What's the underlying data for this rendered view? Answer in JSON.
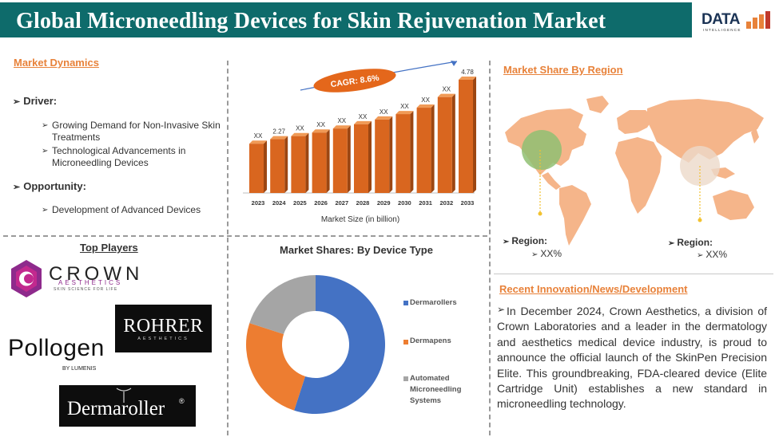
{
  "header": {
    "title": "Global Microneedling Devices for Skin Rejuvenation Market",
    "logo_text": "DATA",
    "logo_sub": "INTELLIGENCE"
  },
  "dynamics": {
    "title": "Market Dynamics",
    "driver_label": "Driver:",
    "drivers": [
      "Growing Demand for Non-Invasive Skin Treatments",
      "Technological Advancements in Microneedling Devices"
    ],
    "opportunity_label": "Opportunity:",
    "opportunities": [
      "Development of Advanced Devices"
    ]
  },
  "market_size": {
    "cagr_label": "CAGR: 8.6%",
    "xlabel": "Market Size (in billion)"
  },
  "chart_data": [
    {
      "type": "bar",
      "categories": [
        "2023",
        "2024",
        "2025",
        "2026",
        "2027",
        "2028",
        "2029",
        "2030",
        "2031",
        "2032",
        "2033"
      ],
      "values": [
        2.08,
        2.27,
        2.4,
        2.55,
        2.72,
        2.9,
        3.1,
        3.33,
        3.6,
        4.05,
        4.78
      ],
      "labels": [
        "XX",
        "2.27",
        "XX",
        "XX",
        "XX",
        "XX",
        "XX",
        "XX",
        "XX",
        "XX",
        "4.78"
      ],
      "xlabel": "Market Size (in billion)",
      "annotation": "CAGR: 8.6%",
      "colors": {
        "front": "#d9661f",
        "side": "#9c4612",
        "top": "#f09a56"
      }
    },
    {
      "type": "pie",
      "title": "Market Shares: By Device Type",
      "categories": [
        "Dermarollers",
        "Dermapens",
        "Automated Microneedling Systems"
      ],
      "values": [
        55,
        25,
        20
      ],
      "colors": [
        "#4472c4",
        "#ed7d31",
        "#a5a5a5"
      ],
      "legend": "right"
    }
  ],
  "device_type": {
    "title": "Market Shares: By Device Type",
    "legend": [
      "Dermarollers",
      "Dermapens",
      "Automated Microneedling Systems"
    ]
  },
  "players": {
    "title": "Top Players",
    "crown_name": "CROWN",
    "crown_sub": "AESTHETICS",
    "crown_tag": "SKIN SCIENCE FOR LIFE",
    "rohrer_name": "ROHRER",
    "rohrer_sub": "AESTHETICS",
    "pollogen_name": "Pollogen",
    "pollogen_sub": "BY LUMENIS",
    "dermaroller_name": "Dermaroller",
    "dermaroller_mark": "®"
  },
  "region": {
    "title": "Market Share By Region",
    "left_label": "Region:",
    "left_value": "XX%",
    "right_label": "Region:",
    "right_value": "XX%"
  },
  "news": {
    "title": "Recent Innovation/News/Development",
    "text": "In December 2024, Crown Aesthetics, a division of Crown Laboratories and a leader in the dermatology and aesthetics medical device industry, is proud to announce the official launch of the SkinPen Precision Elite. This groundbreaking, FDA-cleared device (Elite Cartridge Unit) establishes a new standard in microneedling technology."
  }
}
